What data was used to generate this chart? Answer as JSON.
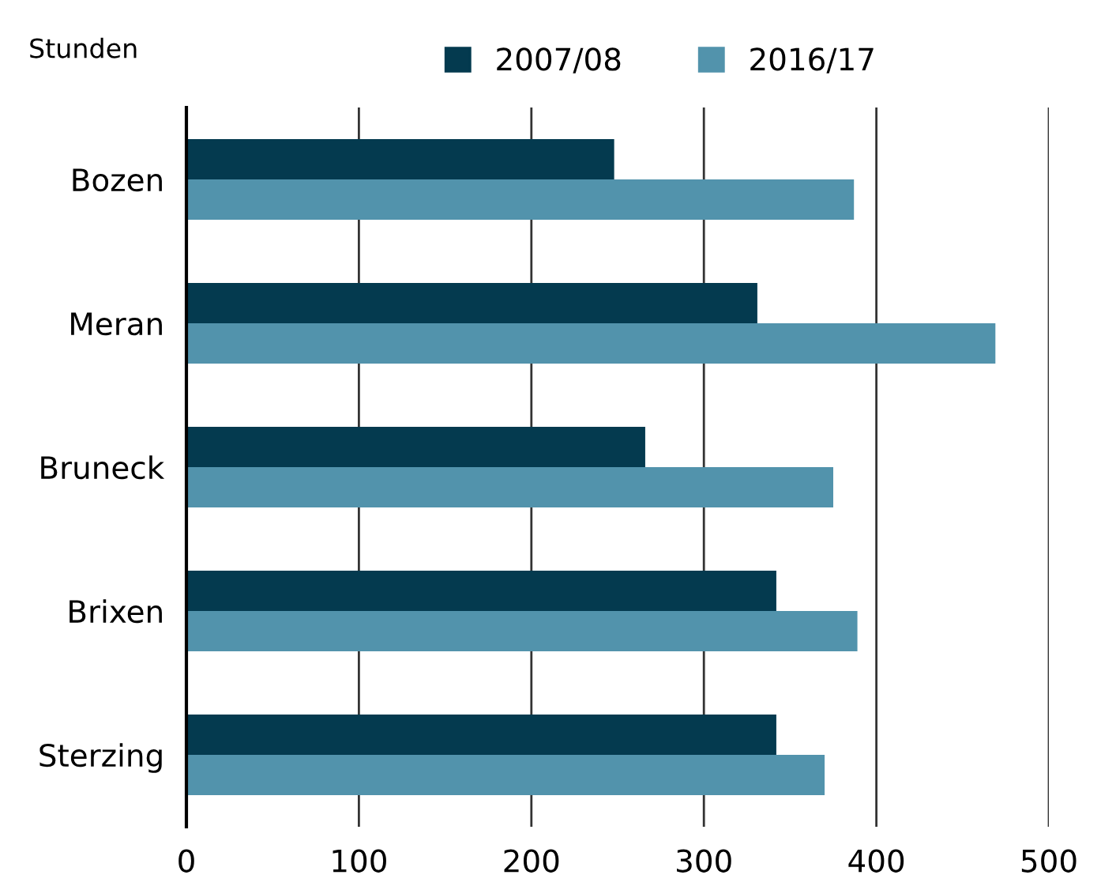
{
  "chart_data": {
    "type": "bar",
    "orientation": "horizontal",
    "ylabel": "Stunden",
    "categories": [
      "Bozen",
      "Meran",
      "Bruneck",
      "Brixen",
      "Sterzing"
    ],
    "series": [
      {
        "name": "2007/08",
        "color": "#043a4f",
        "values": [
          248,
          331,
          266,
          342,
          342
        ]
      },
      {
        "name": "2016/17",
        "color": "#5293ac",
        "values": [
          387,
          469,
          375,
          389,
          370
        ]
      }
    ],
    "xlim": [
      0,
      500
    ],
    "xticks": [
      0,
      100,
      200,
      300,
      400,
      500
    ],
    "grid": "x",
    "legend": "top"
  }
}
